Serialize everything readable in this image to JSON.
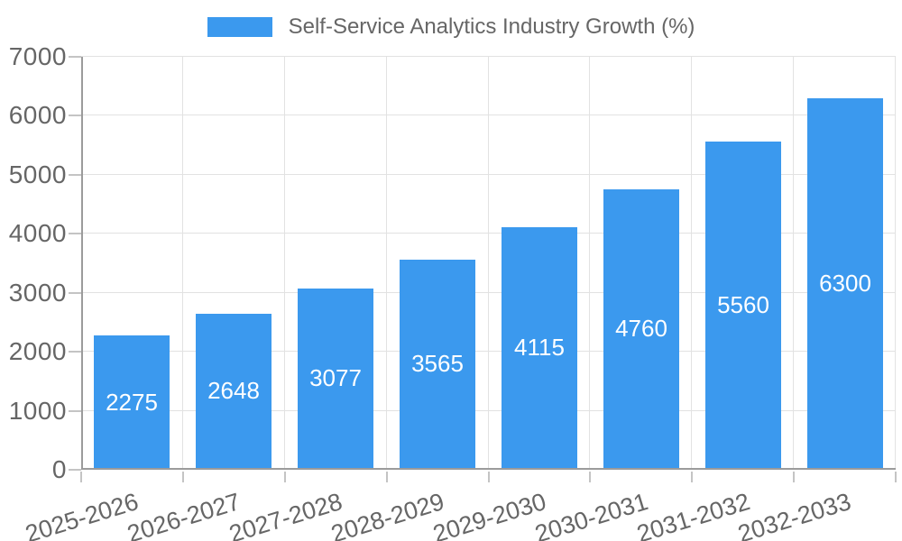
{
  "legend": {
    "label": "Self-Service Analytics Industry Growth (%)"
  },
  "chart_data": {
    "type": "bar",
    "title": "Self-Service Analytics Industry Growth (%)",
    "series_name": "Self-Service Analytics Industry Growth (%)",
    "categories": [
      "2025-2026",
      "2026-2027",
      "2027-2028",
      "2028-2029",
      "2029-2030",
      "2030-2031",
      "2031-2032",
      "2032-2033"
    ],
    "values": [
      2275,
      2648,
      3077,
      3565,
      4115,
      4760,
      5560,
      6300
    ],
    "value_labels": [
      "2275",
      "2648",
      "3077",
      "3565",
      "4115",
      "4760",
      "5560",
      "6300"
    ],
    "xlabel": "",
    "ylabel": "",
    "ylim": [
      0,
      7000
    ],
    "yticks": [
      0,
      1000,
      2000,
      3000,
      4000,
      5000,
      6000,
      7000
    ],
    "ytick_labels": [
      "0",
      "1000",
      "2000",
      "3000",
      "4000",
      "5000",
      "6000",
      "7000"
    ],
    "grid": true,
    "legend_position": "top",
    "bar_color": "#3B99EE",
    "value_label_color": "#FFFFFF"
  },
  "colors": {
    "bar": "#3B99EE",
    "grid": "#e2e2e2",
    "axis": "#9b9b9b",
    "tick": "#c4c4c4",
    "label_text": "#666666",
    "value_text": "#FFFFFF"
  }
}
